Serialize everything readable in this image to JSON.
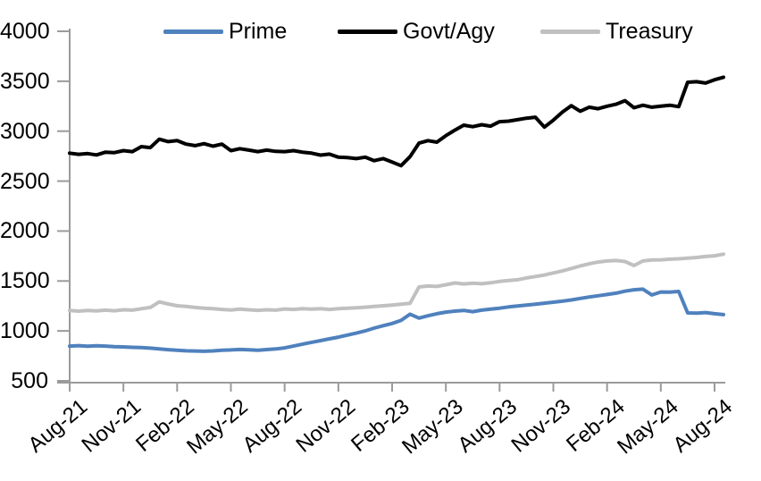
{
  "chart_data": {
    "type": "line",
    "title": "",
    "xlabel": "",
    "ylabel": "",
    "grid": false,
    "legend_position": "top",
    "axis_color": "#9b9b9b",
    "text_color": "#000000",
    "ylim": [
      500,
      4000
    ],
    "y_ticks": [
      4000,
      3500,
      3000,
      2500,
      2000,
      1500,
      1000,
      500
    ],
    "x_tick_labels": [
      "Aug-21",
      "Nov-21",
      "Feb-22",
      "May-22",
      "Aug-22",
      "Nov-22",
      "Feb-23",
      "May-23",
      "Aug-23",
      "Nov-23",
      "Feb-24",
      "May-24",
      "Aug-24"
    ],
    "x_axis_span_months": 36,
    "x_months_start": 0,
    "x_months_step": 0.5,
    "series": [
      {
        "name": "Prime",
        "color": "#4f81bd",
        "values": [
          848,
          853,
          846,
          851,
          848,
          843,
          840,
          836,
          833,
          828,
          820,
          812,
          806,
          801,
          799,
          796,
          800,
          806,
          810,
          814,
          811,
          807,
          813,
          820,
          830,
          848,
          868,
          886,
          903,
          921,
          938,
          958,
          978,
          1000,
          1028,
          1052,
          1075,
          1105,
          1168,
          1128,
          1152,
          1172,
          1188,
          1198,
          1205,
          1193,
          1208,
          1218,
          1228,
          1240,
          1250,
          1258,
          1268,
          1278,
          1288,
          1298,
          1310,
          1325,
          1340,
          1352,
          1365,
          1378,
          1398,
          1412,
          1418,
          1360,
          1390,
          1388,
          1395,
          1180,
          1178,
          1184,
          1172,
          1163
        ]
      },
      {
        "name": "Govt/Agy",
        "color": "#000000",
        "values": [
          2780,
          2768,
          2775,
          2762,
          2790,
          2785,
          2805,
          2795,
          2845,
          2835,
          2920,
          2895,
          2905,
          2870,
          2855,
          2875,
          2850,
          2870,
          2805,
          2825,
          2810,
          2795,
          2810,
          2798,
          2795,
          2805,
          2790,
          2780,
          2760,
          2770,
          2740,
          2735,
          2725,
          2740,
          2705,
          2725,
          2690,
          2655,
          2745,
          2880,
          2905,
          2890,
          2955,
          3010,
          3060,
          3045,
          3065,
          3050,
          3095,
          3100,
          3115,
          3130,
          3140,
          3040,
          3110,
          3190,
          3255,
          3200,
          3240,
          3225,
          3250,
          3270,
          3305,
          3235,
          3260,
          3240,
          3250,
          3260,
          3245,
          3490,
          3495,
          3482,
          3515,
          3540
        ]
      },
      {
        "name": "Treasury",
        "color": "#c0c0c0",
        "values": [
          1205,
          1198,
          1205,
          1200,
          1208,
          1202,
          1212,
          1208,
          1222,
          1235,
          1290,
          1270,
          1252,
          1245,
          1235,
          1228,
          1222,
          1215,
          1210,
          1218,
          1212,
          1206,
          1212,
          1208,
          1220,
          1215,
          1222,
          1218,
          1222,
          1215,
          1222,
          1228,
          1232,
          1238,
          1245,
          1252,
          1258,
          1268,
          1277,
          1440,
          1450,
          1445,
          1462,
          1480,
          1470,
          1478,
          1472,
          1482,
          1495,
          1505,
          1512,
          1530,
          1545,
          1560,
          1580,
          1600,
          1625,
          1650,
          1672,
          1690,
          1700,
          1705,
          1695,
          1655,
          1700,
          1710,
          1712,
          1718,
          1722,
          1728,
          1735,
          1745,
          1752,
          1768
        ]
      }
    ]
  }
}
